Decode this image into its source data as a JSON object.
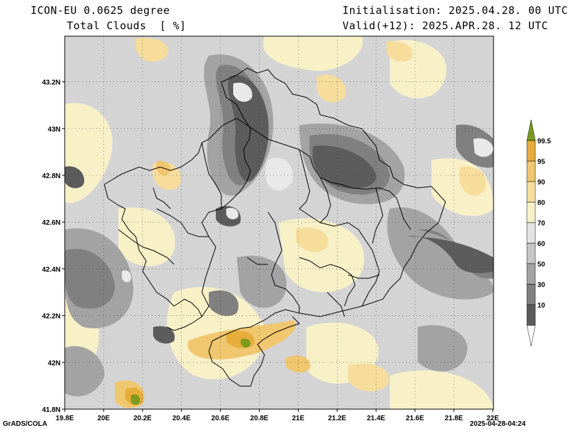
{
  "header": {
    "model": "ICON-EU 0.0625 degree",
    "variable": "Total Clouds  [ %]",
    "init": "Initialisation: 2025.04.28. 00 UTC",
    "valid": "Valid(+12): 2025.APR.28. 12 UTC"
  },
  "axes": {
    "x_ticks": [
      "19.8E",
      "20E",
      "20.2E",
      "20.4E",
      "20.6E",
      "20.8E",
      "21E",
      "21.2E",
      "21.4E",
      "21.6E",
      "21.8E",
      "22E"
    ],
    "y_ticks": [
      "41.8N",
      "42N",
      "42.2N",
      "42.4N",
      "42.6N",
      "42.8N",
      "43N",
      "43.2N"
    ]
  },
  "colorbar": {
    "levels": [
      "99.5",
      "95",
      "90",
      "80",
      "70",
      "60",
      "50",
      "30",
      "10"
    ],
    "colors": [
      "#7b9a1f",
      "#e6ad3a",
      "#f0c66e",
      "#f6dd9c",
      "#f8f1c8",
      "#e3e3e3",
      "#c6c6c6",
      "#a3a3a3",
      "#808080",
      "#5c5c5c",
      "#ffffff"
    ]
  },
  "footer": {
    "left": "GrADS/COLA",
    "right": "2025-04-28-04:24"
  }
}
